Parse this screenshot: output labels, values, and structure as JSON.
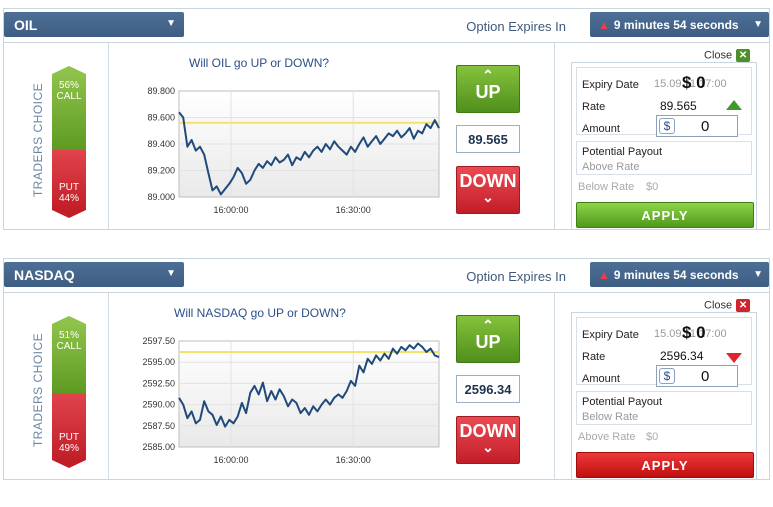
{
  "panels": [
    {
      "asset": "OIL",
      "expires_label": "Option Expires In",
      "expires_value": "9 minutes 54 seconds",
      "traders_choice_label": "TRADERS CHOICE",
      "call_pct": "56%",
      "call_label": "CALL",
      "put_label": "PUT",
      "put_pct": "44%",
      "call_fraction": 0.56,
      "question": "Will OIL go UP or DOWN?",
      "up_label": "UP",
      "down_label": "DOWN",
      "price": "89.565",
      "close_label": "Close",
      "form": {
        "expiry_label": "Expiry Date",
        "expiry_value": "15.09.11 17:00",
        "rate_label": "Rate",
        "rate_value": "89.565",
        "rate_direction": "up",
        "amount_label": "Amount",
        "currency": "$",
        "amount_value": "0",
        "payout_label": "Potential Payout",
        "above_label": "Above Rate",
        "payout_value": "$ 0",
        "below_label": "Below Rate",
        "below_value": "$0",
        "apply_label": "APPLY"
      },
      "colors": {
        "close_box": "#4e8f2a",
        "apply": "green"
      },
      "chart_data": {
        "type": "line",
        "yticks": [
          "89.800",
          "89.600",
          "89.400",
          "89.200",
          "89.000"
        ],
        "xticks": [
          "16:00:00",
          "16:30:00"
        ],
        "ylim": [
          89.0,
          89.8
        ],
        "reference_line": 89.56,
        "series": [
          {
            "values": [
              89.64,
              89.6,
              89.38,
              89.43,
              89.35,
              89.38,
              89.32,
              89.18,
              89.05,
              89.08,
              89.02,
              89.06,
              89.1,
              89.15,
              89.22,
              89.18,
              89.1,
              89.13,
              89.2,
              89.25,
              89.22,
              89.27,
              89.24,
              89.3,
              89.26,
              89.28,
              89.32,
              89.24,
              89.3,
              89.28,
              89.34,
              89.3,
              89.35,
              89.38,
              89.34,
              89.4,
              89.36,
              89.42,
              89.38,
              89.35,
              89.32,
              89.38,
              89.34,
              89.4,
              89.45,
              89.38,
              89.42,
              89.46,
              89.4,
              89.44,
              89.48,
              89.46,
              89.5,
              89.45,
              89.48,
              89.52,
              89.44,
              89.5,
              89.48,
              89.55,
              89.52,
              89.58,
              89.52
            ]
          }
        ]
      }
    },
    {
      "asset": "NASDAQ",
      "expires_label": "Option Expires In",
      "expires_value": "9 minutes 54 seconds",
      "traders_choice_label": "TRADERS CHOICE",
      "call_pct": "51%",
      "call_label": "CALL",
      "put_label": "PUT",
      "put_pct": "49%",
      "call_fraction": 0.51,
      "question": "Will NASDAQ go UP or DOWN?",
      "up_label": "UP",
      "down_label": "DOWN",
      "price": "2596.34",
      "close_label": "Close",
      "form": {
        "expiry_label": "Expiry Date",
        "expiry_value": "15.09.11 17:00",
        "rate_label": "Rate",
        "rate_value": "2596.34",
        "rate_direction": "down",
        "amount_label": "Amount",
        "currency": "$",
        "amount_value": "0",
        "payout_label": "Potential Payout",
        "above_label": "Below Rate",
        "payout_value": "$ 0",
        "below_label": "Above Rate",
        "below_value": "$0",
        "apply_label": "APPLY"
      },
      "colors": {
        "close_box": "#d0232b",
        "apply": "red"
      },
      "chart_data": {
        "type": "line",
        "yticks": [
          "2597.50",
          "2595.00",
          "2592.50",
          "2590.00",
          "2587.50",
          "2585.00"
        ],
        "xticks": [
          "16:00:00",
          "16:30:00"
        ],
        "ylim": [
          2585.0,
          2597.5
        ],
        "reference_line": 2596.2,
        "series": [
          {
            "values": [
              2590.8,
              2590.0,
              2588.4,
              2589.2,
              2587.8,
              2588.2,
              2590.4,
              2589.2,
              2588.8,
              2587.6,
              2588.6,
              2587.4,
              2588.2,
              2587.8,
              2588.6,
              2590.2,
              2589.0,
              2591.4,
              2592.2,
              2591.2,
              2592.6,
              2590.4,
              2591.6,
              2590.6,
              2591.8,
              2591.0,
              2589.8,
              2590.6,
              2590.2,
              2589.0,
              2589.6,
              2588.8,
              2589.8,
              2589.2,
              2590.0,
              2590.6,
              2590.0,
              2590.8,
              2591.2,
              2590.8,
              2591.6,
              2592.8,
              2592.2,
              2594.6,
              2593.8,
              2595.4,
              2594.8,
              2595.8,
              2595.2,
              2596.0,
              2595.4,
              2596.6,
              2596.0,
              2596.8,
              2596.4,
              2597.0,
              2596.6,
              2597.2,
              2596.8,
              2596.2,
              2596.6,
              2595.8,
              2595.6
            ]
          }
        ]
      }
    }
  ]
}
